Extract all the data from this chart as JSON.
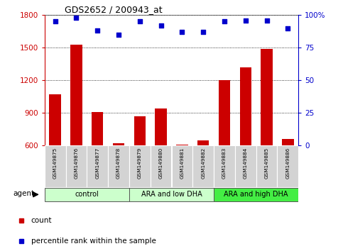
{
  "title": "GDS2652 / 200943_at",
  "samples": [
    "GSM149875",
    "GSM149876",
    "GSM149877",
    "GSM149878",
    "GSM149879",
    "GSM149880",
    "GSM149881",
    "GSM149882",
    "GSM149883",
    "GSM149884",
    "GSM149885",
    "GSM149886"
  ],
  "counts": [
    1070,
    1530,
    910,
    620,
    870,
    940,
    610,
    650,
    1200,
    1320,
    1490,
    660
  ],
  "percentiles": [
    95,
    98,
    88,
    85,
    95,
    92,
    87,
    87,
    95,
    96,
    96,
    90
  ],
  "groups": [
    {
      "label": "control",
      "start": 0,
      "end": 4,
      "color": "#ccffcc"
    },
    {
      "label": "ARA and low DHA",
      "start": 4,
      "end": 8,
      "color": "#ccffcc"
    },
    {
      "label": "ARA and high DHA",
      "start": 8,
      "end": 12,
      "color": "#44ee44"
    }
  ],
  "ylim_left": [
    600,
    1800
  ],
  "ylim_right": [
    0,
    100
  ],
  "yticks_left": [
    600,
    900,
    1200,
    1500,
    1800
  ],
  "yticks_right": [
    0,
    25,
    50,
    75,
    100
  ],
  "bar_color": "#cc0000",
  "dot_color": "#0000cc",
  "bar_width": 0.55,
  "left_axis_color": "#cc0000",
  "right_axis_color": "#0000cc",
  "legend_items": [
    {
      "label": "count",
      "color": "#cc0000",
      "marker": "s"
    },
    {
      "label": "percentile rank within the sample",
      "color": "#0000cc",
      "marker": "s"
    }
  ],
  "agent_label": "agent",
  "background_color": "#ffffff"
}
